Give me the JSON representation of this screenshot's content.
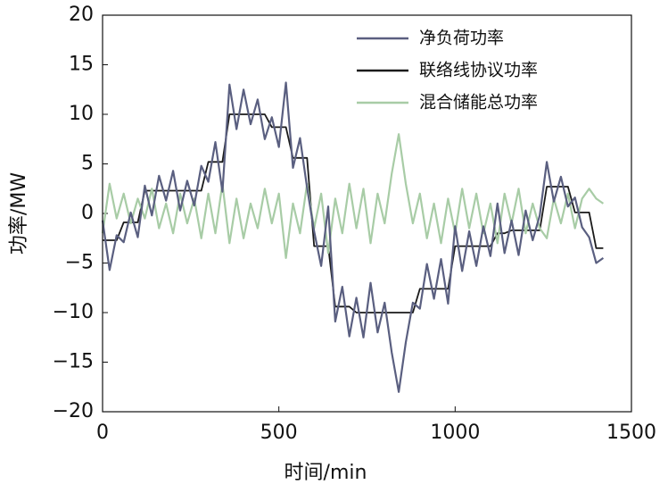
{
  "chart_data": {
    "type": "line",
    "x_label": "时间/min",
    "y_label": "功率/MW",
    "x": [
      0,
      20,
      40,
      60,
      80,
      100,
      120,
      140,
      160,
      180,
      200,
      220,
      240,
      260,
      280,
      300,
      320,
      340,
      360,
      380,
      400,
      420,
      440,
      460,
      480,
      500,
      520,
      540,
      560,
      580,
      600,
      620,
      640,
      660,
      680,
      700,
      720,
      740,
      760,
      780,
      800,
      820,
      840,
      860,
      880,
      900,
      920,
      940,
      960,
      980,
      1000,
      1020,
      1040,
      1060,
      1080,
      1100,
      1120,
      1140,
      1160,
      1180,
      1200,
      1220,
      1240,
      1260,
      1280,
      1300,
      1320,
      1340,
      1360,
      1380,
      1400,
      1420
    ],
    "series": [
      {
        "name": "净负荷功率",
        "color": "#5a5f80",
        "values": [
          -0.7,
          -5.7,
          -2.2,
          -2.9,
          0.1,
          -2.4,
          2.8,
          -0.2,
          3.8,
          1.3,
          4.3,
          0.3,
          3.3,
          0.8,
          4.8,
          3.2,
          7.2,
          2.2,
          13,
          8.5,
          12.5,
          9,
          11.5,
          7.5,
          9.7,
          6.7,
          13.2,
          4.6,
          7.6,
          2.6,
          -1.8,
          -5.3,
          0.7,
          -10.9,
          -7.4,
          -12.4,
          -8.5,
          -12.5,
          -7,
          -12,
          -9,
          -14,
          -18,
          -13,
          -9,
          -9.6,
          -5.1,
          -8.6,
          -4.6,
          -9.1,
          -1.3,
          -5.8,
          -1.8,
          -5.3,
          -1.3,
          -4.3,
          1.0,
          -4.0,
          -0.7,
          -4.2,
          0.3,
          -2.7,
          -0.2,
          5.2,
          1.2,
          3.7,
          0.7,
          1.6,
          -1.4,
          -2.4,
          -5.0,
          -4.5
        ]
      },
      {
        "name": "联络线协议功率",
        "color": "#1a1a1a",
        "values": [
          -2.7,
          -2.7,
          -2.7,
          -0.9,
          -0.9,
          -0.9,
          2.3,
          2.3,
          2.3,
          2.3,
          2.3,
          2.3,
          2.3,
          2.3,
          2.3,
          5.2,
          5.2,
          5.2,
          10,
          10,
          10,
          10,
          10,
          10,
          8.7,
          8.7,
          8.7,
          5.6,
          5.6,
          5.6,
          -3.3,
          -3.3,
          -3.3,
          -9.4,
          -9.4,
          -9.4,
          -10,
          -10,
          -10,
          -10,
          -10,
          -10,
          -10,
          -10,
          -10,
          -7.6,
          -7.6,
          -7.6,
          -7.6,
          -7.6,
          -3.3,
          -3.3,
          -3.3,
          -3.3,
          -3.3,
          -3.3,
          -2.0,
          -2.0,
          -1.7,
          -1.7,
          -1.7,
          -1.7,
          -1.7,
          2.7,
          2.7,
          2.7,
          2.7,
          0.1,
          0.1,
          0.1,
          -3.5,
          -3.5
        ]
      },
      {
        "name": "混合储能总功率",
        "color": "#a8cca6",
        "values": [
          -2.0,
          3.0,
          -0.5,
          2.0,
          -1.0,
          1.5,
          -0.5,
          2.5,
          -1.5,
          1.0,
          -2.0,
          2.0,
          -1.0,
          1.5,
          -2.5,
          2.0,
          -2.0,
          3.0,
          -3.0,
          1.5,
          -2.5,
          1.0,
          -1.5,
          2.5,
          -1.0,
          2.0,
          -4.5,
          1.0,
          -2.0,
          3.0,
          -1.5,
          2.0,
          -4.0,
          1.5,
          -2.0,
          3.0,
          -1.5,
          2.5,
          -3.0,
          2.0,
          -1.0,
          4.0,
          8.0,
          3.0,
          -1.0,
          2.0,
          -2.5,
          1.0,
          -3.0,
          1.5,
          -2.0,
          2.5,
          -1.5,
          2.0,
          -2.0,
          1.0,
          -3.0,
          2.0,
          -1.0,
          2.5,
          -2.0,
          1.0,
          -1.5,
          -2.5,
          1.5,
          -1.0,
          2.0,
          -1.5,
          1.5,
          2.5,
          1.5,
          1.0
        ]
      }
    ],
    "xlim": [
      0,
      1500
    ],
    "ylim": [
      -20,
      20
    ],
    "xticks": [
      0,
      500,
      1000,
      1500
    ],
    "yticks": [
      {
        "value": -20,
        "label": "−20"
      },
      {
        "value": -15,
        "label": "−15"
      },
      {
        "value": -10,
        "label": "−10"
      },
      {
        "value": -5,
        "label": "−5"
      },
      0,
      5,
      10,
      15,
      20
    ],
    "legend": "upper right"
  }
}
